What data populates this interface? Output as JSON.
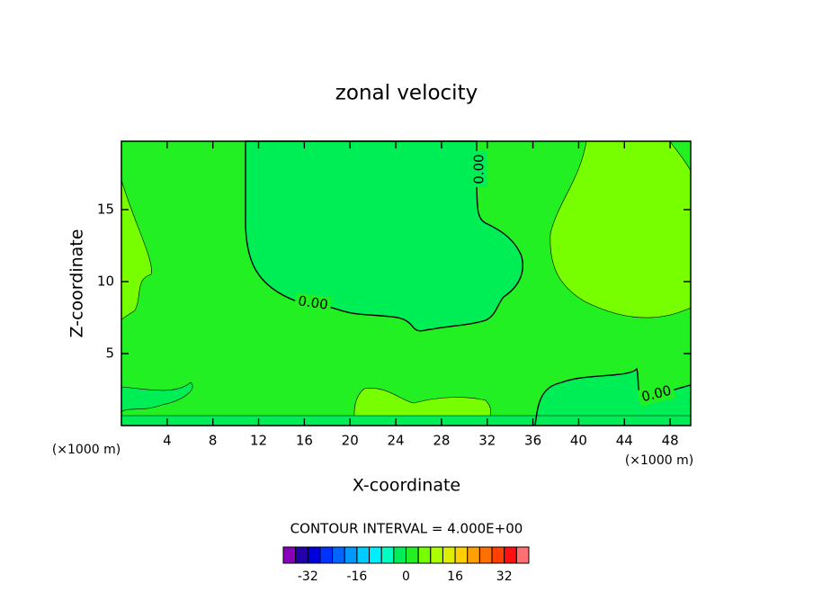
{
  "chart_data": {
    "type": "contour",
    "title": "zonal velocity",
    "x_label": "X-coordinate",
    "y_label": "Z-coordinate",
    "x_unit": "(×1000 m)",
    "y_unit": "(×1000 m)",
    "xlim": [
      0,
      49.8
    ],
    "ylim": [
      0,
      19.75
    ],
    "xticks": [
      4,
      8,
      12,
      16,
      20,
      24,
      28,
      32,
      36,
      40,
      44,
      48
    ],
    "yticks": [
      5,
      10,
      15
    ],
    "contour_labels": {
      "values": [
        0,
        0,
        0
      ],
      "value_labels": [
        "0.00",
        "0.00",
        "0.00"
      ]
    },
    "contour_interval": {
      "value": 4,
      "label": "CONTOUR INTERVAL = 4.000E+00"
    },
    "colorbar": {
      "bins": [
        -40,
        -36,
        -32,
        -28,
        -24,
        -20,
        -16,
        -12,
        -8,
        -4,
        0,
        4,
        8,
        12,
        16,
        20,
        24,
        28,
        32,
        36,
        40
      ],
      "colors": [
        "#8800bb",
        "#2200aa",
        "#0000dd",
        "#0033ff",
        "#0066ff",
        "#0099ff",
        "#00ccff",
        "#00eeff",
        "#00ffc0",
        "#00ee55",
        "#22f022",
        "#77ff00",
        "#aaff00",
        "#ddee00",
        "#ffd000",
        "#ffa000",
        "#ff7000",
        "#ff4000",
        "#ff1010",
        "#ff7070"
      ],
      "ticks": [
        -32,
        -16,
        0,
        16,
        32
      ]
    }
  }
}
